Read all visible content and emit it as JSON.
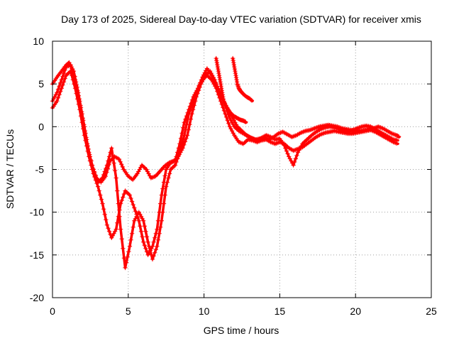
{
  "chart_data": {
    "type": "scatter",
    "title": "Day 173 of 2025, Sidereal Day-to-day VTEC variation (SDTVAR) for receiver xmis",
    "xlabel": "GPS time / hours",
    "ylabel": "SDTVAR / TECUs",
    "xlim": [
      0,
      25
    ],
    "ylim": [
      -20,
      10
    ],
    "xticks": [
      "0",
      "5",
      "10",
      "15",
      "20",
      "25"
    ],
    "yticks": [
      "10",
      "5",
      "0",
      "-5",
      "-10",
      "-15",
      "-20"
    ],
    "grid": true,
    "marker": "+",
    "color": "#ff0000",
    "series": [
      {
        "x": [
          0.0,
          0.3,
          0.6,
          0.9,
          1.1,
          1.4,
          1.7,
          2.0,
          2.3,
          2.6,
          2.9,
          3.2,
          3.5,
          3.8,
          4.1,
          4.4,
          4.7,
          5.0,
          5.3,
          5.6,
          5.9,
          6.2,
          6.5,
          6.8,
          7.1,
          7.4,
          7.7,
          8.0,
          8.3,
          8.6,
          8.9,
          9.2,
          9.5,
          9.8,
          10.1,
          10.4,
          10.7,
          11.0,
          11.3,
          11.6,
          11.9,
          12.2,
          12.5,
          12.8,
          13.1,
          13.4,
          13.7,
          14.0,
          14.3,
          14.6,
          14.9,
          15.2,
          15.5,
          15.8,
          16.1,
          16.4,
          16.7,
          17.0,
          17.3,
          17.6,
          17.9,
          18.2,
          18.5,
          18.8,
          19.1,
          19.4,
          19.7,
          20.0,
          20.3,
          20.6,
          20.9,
          21.2,
          21.5,
          21.8,
          22.1,
          22.4,
          22.7,
          22.9
        ],
        "y": [
          5.0,
          5.8,
          6.5,
          7.2,
          7.5,
          6.5,
          4.0,
          1.0,
          -2.0,
          -4.5,
          -6.0,
          -6.5,
          -5.8,
          -4.0,
          -3.5,
          -3.8,
          -5.0,
          -5.8,
          -6.2,
          -5.5,
          -4.5,
          -5.0,
          -6.0,
          -5.8,
          -5.2,
          -4.6,
          -4.2,
          -4.0,
          -3.5,
          -2.5,
          -1.0,
          1.5,
          3.5,
          5.0,
          6.0,
          6.5,
          5.5,
          4.0,
          3.0,
          2.0,
          1.0,
          0.0,
          -0.5,
          -1.0,
          -1.3,
          -1.5,
          -1.4,
          -1.3,
          -1.5,
          -1.2,
          -0.8,
          -0.6,
          -0.9,
          -1.2,
          -1.0,
          -0.7,
          -0.5,
          -0.4,
          -0.2,
          0.0,
          0.1,
          0.2,
          0.1,
          0.0,
          -0.2,
          -0.3,
          -0.4,
          -0.5,
          -0.5,
          -0.4,
          -0.3,
          -0.2,
          0.0,
          -0.2,
          -0.5,
          -0.8,
          -1.0,
          -1.2
        ]
      },
      {
        "x": [
          0.0,
          0.3,
          0.6,
          0.9,
          1.2,
          1.5,
          1.8,
          2.1,
          2.4,
          2.7,
          3.0,
          3.3,
          3.6,
          3.9,
          4.2,
          4.5,
          4.8,
          5.1,
          5.4,
          5.7,
          6.0,
          6.3,
          6.6,
          6.9,
          7.2,
          7.5,
          7.8,
          8.1,
          8.4,
          8.7,
          9.0,
          9.3,
          9.6,
          9.9,
          10.2,
          10.5,
          10.8,
          11.1,
          11.4,
          11.7,
          12.0,
          12.3,
          12.6,
          12.9,
          13.2,
          13.5,
          13.8,
          14.1,
          14.4,
          14.7,
          15.0,
          15.3,
          15.6,
          15.9,
          16.2,
          16.5,
          16.8,
          17.1,
          17.4,
          17.7,
          18.0,
          18.3,
          18.6,
          18.9,
          19.2,
          19.5,
          19.8,
          20.1,
          20.4,
          20.7,
          21.0,
          21.3,
          21.6,
          21.9,
          22.2,
          22.5,
          22.8
        ],
        "y": [
          2.2,
          3.0,
          4.5,
          6.0,
          6.5,
          4.5,
          2.0,
          -1.0,
          -3.5,
          -5.5,
          -7.0,
          -9.0,
          -11.5,
          -13.0,
          -12.0,
          -9.0,
          -7.5,
          -8.0,
          -9.5,
          -11.0,
          -13.5,
          -15.0,
          -14.0,
          -12.0,
          -8.0,
          -5.0,
          -4.2,
          -4.0,
          -2.0,
          0.5,
          2.0,
          3.5,
          4.5,
          5.5,
          6.0,
          5.5,
          4.5,
          3.0,
          1.5,
          0.0,
          -1.0,
          -1.8,
          -2.0,
          -1.5,
          -1.6,
          -1.8,
          -1.6,
          -1.5,
          -1.8,
          -2.0,
          -1.8,
          -2.0,
          -2.5,
          -2.8,
          -2.6,
          -2.4,
          -2.0,
          -1.6,
          -1.2,
          -0.9,
          -0.7,
          -0.6,
          -0.5,
          -0.6,
          -0.7,
          -0.8,
          -0.8,
          -0.7,
          -0.6,
          -0.5,
          -0.4,
          -0.6,
          -0.9,
          -1.2,
          -1.5,
          -1.8,
          -2.0
        ]
      },
      {
        "x": [
          0.0,
          0.3,
          0.6,
          0.9,
          1.2,
          1.5,
          1.8,
          2.1,
          2.4,
          2.7,
          3.0,
          3.3,
          3.6,
          3.9,
          4.2,
          4.5,
          4.8,
          5.1,
          5.4,
          5.7,
          6.0,
          6.3,
          6.6,
          6.9,
          7.2,
          7.5,
          7.8,
          8.1,
          8.4,
          8.7,
          9.0,
          9.3,
          9.6,
          9.9,
          10.2,
          10.5,
          10.8,
          11.1,
          11.4,
          11.7,
          12.0,
          12.3,
          12.6,
          12.9,
          13.2,
          13.5,
          13.8,
          14.1,
          14.4,
          14.7,
          15.0,
          15.3,
          15.6,
          15.9,
          16.2,
          16.5,
          16.8,
          17.1,
          17.4,
          17.7,
          18.0,
          18.3,
          18.6,
          18.9,
          19.2,
          19.5,
          19.8,
          20.1,
          20.4,
          20.7,
          21.0,
          21.3,
          21.6,
          21.9,
          22.2,
          22.5,
          22.8
        ],
        "y": [
          3.0,
          4.0,
          5.5,
          7.0,
          7.2,
          5.5,
          3.0,
          0.0,
          -3.0,
          -5.0,
          -6.5,
          -6.0,
          -4.5,
          -2.5,
          -6.0,
          -12.0,
          -16.5,
          -14.0,
          -11.0,
          -10.0,
          -11.0,
          -13.5,
          -15.5,
          -14.0,
          -11.0,
          -7.0,
          -5.0,
          -4.5,
          -3.0,
          -1.0,
          1.5,
          3.0,
          4.5,
          5.8,
          6.8,
          6.0,
          5.0,
          3.8,
          2.5,
          1.0,
          0.0,
          -0.5,
          -0.8,
          -1.1,
          -1.4,
          -1.6,
          -1.3,
          -1.0,
          -1.2,
          -1.5,
          -1.4,
          -2.2,
          -3.5,
          -4.5,
          -3.0,
          -2.0,
          -1.5,
          -1.0,
          -0.6,
          -0.3,
          -0.1,
          0.0,
          -0.1,
          -0.3,
          -0.5,
          -0.6,
          -0.4,
          -0.2,
          0.0,
          0.1,
          0.0,
          -0.3,
          -0.6,
          -0.9,
          -1.2,
          -1.5,
          -1.6
        ]
      },
      {
        "x": [
          10.8,
          10.9,
          11.0,
          11.1,
          11.2,
          11.3,
          11.4,
          11.6,
          11.8,
          12.0,
          12.2,
          12.4,
          12.6,
          12.8
        ],
        "y": [
          8.0,
          7.0,
          6.0,
          5.0,
          4.0,
          3.0,
          2.5,
          2.0,
          1.5,
          1.2,
          1.0,
          0.8,
          0.7,
          0.5
        ]
      },
      {
        "x": [
          11.9,
          12.0,
          12.1,
          12.2,
          12.3,
          12.4,
          12.5,
          12.6,
          12.8,
          13.0,
          13.2
        ],
        "y": [
          8.0,
          7.0,
          6.0,
          5.0,
          4.5,
          4.2,
          4.0,
          3.8,
          3.5,
          3.3,
          3.0
        ]
      }
    ]
  }
}
